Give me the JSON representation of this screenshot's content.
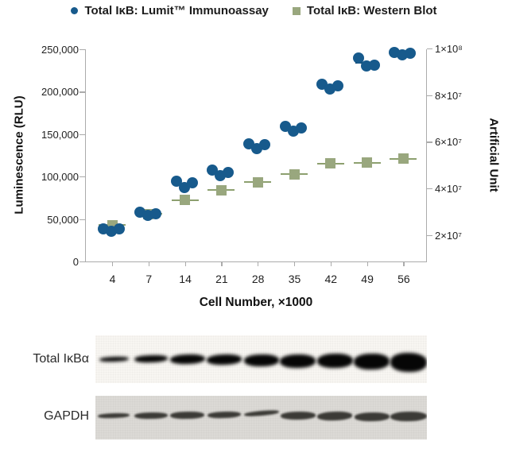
{
  "legend": {
    "items": [
      {
        "label": "Total IκB: Lumit™ Immunoassay",
        "marker": "circle",
        "color": "#175a8c"
      },
      {
        "label": "Total IκB: Western Blot",
        "marker": "square",
        "color": "#99a77e"
      }
    ]
  },
  "chart_data": {
    "type": "scatter",
    "x_categories": [
      "4",
      "7",
      "14",
      "21",
      "28",
      "35",
      "42",
      "49",
      "56"
    ],
    "xlabel": "Cell Number, ×1000",
    "ylabel_left": "Luminescence (RLU)",
    "ylabel_right": "Artificial Unit",
    "ylim_left": [
      0,
      250000
    ],
    "ylim_right": [
      8570000,
      99700000
    ],
    "yticks_left": [
      {
        "value": 250000,
        "label": "250,000"
      },
      {
        "value": 200000,
        "label": "200,000"
      },
      {
        "value": 150000,
        "label": "150,000"
      },
      {
        "value": 100000,
        "label": "100,000"
      },
      {
        "value": 50000,
        "label": "50,000"
      },
      {
        "value": 0,
        "label": "0"
      }
    ],
    "yticks_right": [
      {
        "value": 100000000,
        "label": "1×10⁸"
      },
      {
        "value": 80000000,
        "label": "8×10⁷"
      },
      {
        "value": 60000000,
        "label": "6×10⁷"
      },
      {
        "value": 40000000,
        "label": "4×10⁷"
      },
      {
        "value": 20000000,
        "label": "2×10⁷"
      }
    ],
    "grid": false,
    "legend_position": "top",
    "series": [
      {
        "name": "Total IκB: Lumit™ Immunoassay",
        "axis": "left",
        "marker": "circle",
        "color": "#175a8c",
        "mean_line_color": "#0f3d5e",
        "replicates": [
          [
            38500,
            35500,
            38000
          ],
          [
            58000,
            54000,
            56500
          ],
          [
            95000,
            87000,
            93000
          ],
          [
            107500,
            101000,
            105000
          ],
          [
            139000,
            132500,
            137500
          ],
          [
            159000,
            153500,
            157500
          ],
          [
            209000,
            203000,
            207000
          ],
          [
            240000,
            230500,
            231500
          ],
          [
            246000,
            243500,
            245500
          ]
        ]
      },
      {
        "name": "Total IκB: Western Blot",
        "axis": "right",
        "marker": "square",
        "color": "#99a77e",
        "error_line_color": "#8da06f",
        "values": [
          24200000,
          29000000,
          35000000,
          39200000,
          42700000,
          46000000,
          50600000,
          51000000,
          52700000
        ]
      }
    ]
  },
  "blots": [
    {
      "label": "Total IκBα",
      "lanes": 9,
      "band_heights": [
        6,
        9,
        12,
        13,
        15,
        17,
        18,
        20,
        24
      ],
      "band_color": "#060606",
      "background": "#f8f6f2"
    },
    {
      "label": "GAPDH",
      "lanes": 9,
      "band_heights": [
        6,
        8,
        9,
        8,
        6,
        10,
        11,
        11,
        12
      ],
      "band_color": "#3b3a36",
      "background": "#dcdad6"
    }
  ]
}
